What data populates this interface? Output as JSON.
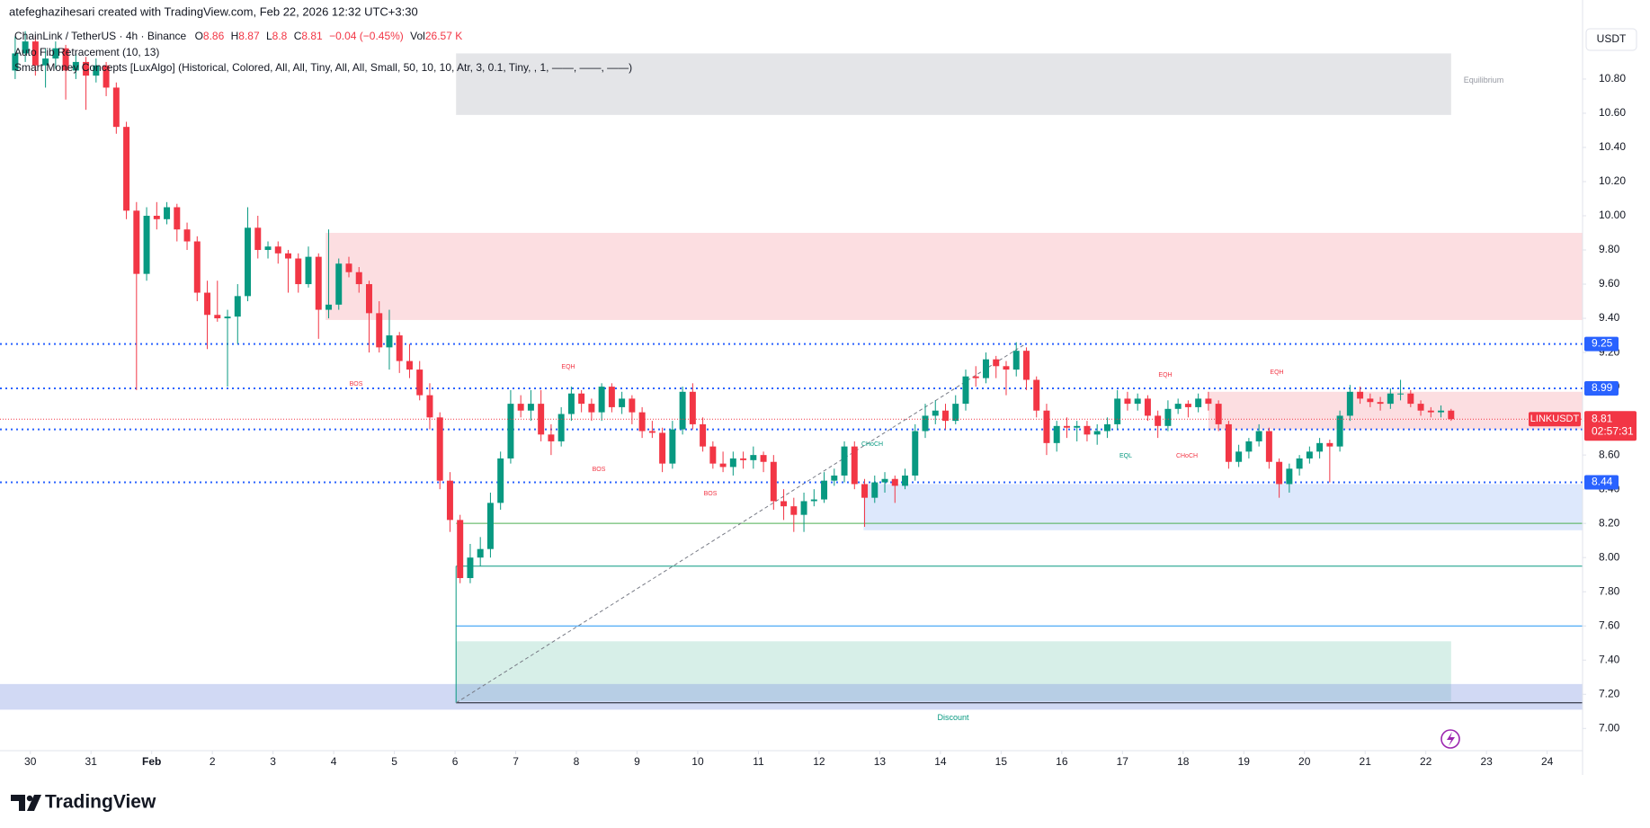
{
  "header": {
    "text": "atefeghazihesari created with TradingView.com, Feb 22, 2026 12:32 UTC+3:30"
  },
  "legend": {
    "symbol": "ChainLink / TetherUS · 4h · Binance",
    "ohlc_labels": [
      "O",
      "H",
      "L",
      "C"
    ],
    "change": "−0.04 (−0.45%)",
    "vol_label": "Vol",
    "vol": "26.57 K",
    "indicators": [
      "Auto Fib Retracement (10, 13)",
      "Smart Money Concepts [LuxAlgo] (Historical, Colored, All, All, Tiny, All, All, Small, 50, 10, 10, Atr, 3, 0.1, Tiny, , 1, ——, ——, ——)"
    ]
  },
  "currency": "USDT",
  "logo": "TradingView",
  "chart_data": {
    "type": "candlestick",
    "up_color": "#089981",
    "down_color": "#f23645",
    "xlim": [
      -1.5,
      155
    ],
    "ylim": [
      6.87,
      11.11
    ],
    "xticks": [
      {
        "value": 1.5,
        "label": "30"
      },
      {
        "value": 7.5,
        "label": "31"
      },
      {
        "value": 13.5,
        "label": "Feb"
      },
      {
        "value": 19.5,
        "label": "2"
      },
      {
        "value": 25.5,
        "label": "3"
      },
      {
        "value": 31.5,
        "label": "4"
      },
      {
        "value": 37.5,
        "label": "5"
      },
      {
        "value": 43.5,
        "label": "6"
      },
      {
        "value": 49.5,
        "label": "7"
      },
      {
        "value": 55.5,
        "label": "8"
      },
      {
        "value": 61.5,
        "label": "9"
      },
      {
        "value": 67.5,
        "label": "10"
      },
      {
        "value": 73.5,
        "label": "11"
      },
      {
        "value": 79.5,
        "label": "12"
      },
      {
        "value": 85.5,
        "label": "13"
      },
      {
        "value": 91.5,
        "label": "14"
      },
      {
        "value": 97.5,
        "label": "15"
      },
      {
        "value": 103.5,
        "label": "16"
      },
      {
        "value": 109.5,
        "label": "17"
      },
      {
        "value": 115.5,
        "label": "18"
      },
      {
        "value": 121.5,
        "label": "19"
      },
      {
        "value": 127.5,
        "label": "20"
      },
      {
        "value": 133.5,
        "label": "21"
      },
      {
        "value": 139.5,
        "label": "22"
      },
      {
        "value": 145.5,
        "label": "23"
      },
      {
        "value": 151.5,
        "label": "24"
      }
    ],
    "yticks": [
      {
        "value": 7,
        "label": "7.00"
      },
      {
        "value": 7.2,
        "label": "7.20"
      },
      {
        "value": 7.4,
        "label": "7.40"
      },
      {
        "value": 7.6,
        "label": "7.60"
      },
      {
        "value": 7.8,
        "label": "7.80"
      },
      {
        "value": 8,
        "label": "8.00"
      },
      {
        "value": 8.2,
        "label": "8.20"
      },
      {
        "value": 8.4,
        "label": "8.40"
      },
      {
        "value": 8.6,
        "label": "8.60"
      },
      {
        "value": 8.8,
        "label": "8.80"
      },
      {
        "value": 9,
        "label": "9.00"
      },
      {
        "value": 9.2,
        "label": "9.20"
      },
      {
        "value": 9.4,
        "label": "9.40"
      },
      {
        "value": 9.6,
        "label": "9.60"
      },
      {
        "value": 9.8,
        "label": "9.80"
      },
      {
        "value": 10,
        "label": "10.00"
      },
      {
        "value": 10.2,
        "label": "10.20"
      },
      {
        "value": 10.4,
        "label": "10.40"
      },
      {
        "value": 10.6,
        "label": "10.60"
      },
      {
        "value": 10.8,
        "label": "10.80"
      }
    ],
    "candles": [
      [
        10.85,
        11.05,
        10.8,
        10.95
      ],
      [
        10.95,
        11.08,
        10.9,
        11.02
      ],
      [
        11.02,
        11.05,
        10.82,
        10.88
      ],
      [
        10.88,
        10.98,
        10.75,
        10.92
      ],
      [
        10.92,
        11.02,
        10.86,
        10.98
      ],
      [
        10.98,
        11.0,
        10.68,
        10.85
      ],
      [
        10.85,
        10.95,
        10.8,
        10.9
      ],
      [
        10.9,
        10.93,
        10.62,
        10.82
      ],
      [
        10.82,
        10.92,
        10.78,
        10.88
      ],
      [
        10.88,
        10.9,
        10.7,
        10.75
      ],
      [
        10.75,
        10.78,
        10.48,
        10.52
      ],
      [
        10.52,
        10.55,
        9.98,
        10.03
      ],
      [
        10.03,
        10.08,
        8.98,
        9.66
      ],
      [
        9.66,
        10.05,
        9.62,
        10.0
      ],
      [
        10.0,
        10.08,
        9.92,
        9.98
      ],
      [
        9.98,
        10.08,
        9.95,
        10.05
      ],
      [
        10.05,
        10.07,
        9.85,
        9.92
      ],
      [
        9.92,
        9.96,
        9.8,
        9.85
      ],
      [
        9.85,
        9.88,
        9.5,
        9.55
      ],
      [
        9.55,
        9.62,
        9.22,
        9.42
      ],
      [
        9.42,
        9.62,
        9.38,
        9.4
      ],
      [
        9.4,
        9.45,
        9.0,
        9.41
      ],
      [
        9.41,
        9.6,
        9.25,
        9.53
      ],
      [
        9.53,
        10.05,
        9.5,
        9.93
      ],
      [
        9.93,
        10.0,
        9.75,
        9.8
      ],
      [
        9.8,
        9.85,
        9.75,
        9.82
      ],
      [
        9.82,
        9.85,
        9.72,
        9.78
      ],
      [
        9.78,
        9.8,
        9.55,
        9.75
      ],
      [
        9.75,
        9.78,
        9.55,
        9.6
      ],
      [
        9.6,
        9.82,
        9.58,
        9.76
      ],
      [
        9.76,
        9.78,
        9.28,
        9.45
      ],
      [
        9.45,
        9.92,
        9.4,
        9.48
      ],
      [
        9.48,
        9.75,
        9.45,
        9.72
      ],
      [
        9.72,
        9.76,
        9.64,
        9.67
      ],
      [
        9.67,
        9.7,
        9.55,
        9.6
      ],
      [
        9.6,
        9.62,
        9.2,
        9.43
      ],
      [
        9.43,
        9.5,
        9.2,
        9.23
      ],
      [
        9.23,
        9.45,
        9.1,
        9.3
      ],
      [
        9.3,
        9.32,
        9.08,
        9.15
      ],
      [
        9.15,
        9.25,
        9.05,
        9.1
      ],
      [
        9.1,
        9.15,
        8.92,
        8.95
      ],
      [
        8.95,
        9.02,
        8.75,
        8.82
      ],
      [
        8.82,
        8.85,
        8.4,
        8.45
      ],
      [
        8.45,
        8.5,
        8.15,
        8.22
      ],
      [
        8.22,
        8.25,
        7.85,
        7.88
      ],
      [
        7.88,
        8.08,
        7.85,
        8.0
      ],
      [
        8.0,
        8.12,
        7.95,
        8.05
      ],
      [
        8.05,
        8.38,
        8.0,
        8.32
      ],
      [
        8.32,
        8.62,
        8.28,
        8.58
      ],
      [
        8.58,
        8.98,
        8.55,
        8.9
      ],
      [
        8.9,
        8.95,
        8.82,
        8.86
      ],
      [
        8.86,
        8.98,
        8.8,
        8.9
      ],
      [
        8.9,
        8.98,
        8.68,
        8.72
      ],
      [
        8.72,
        8.78,
        8.6,
        8.68
      ],
      [
        8.68,
        8.88,
        8.65,
        8.84
      ],
      [
        8.84,
        9.0,
        8.8,
        8.96
      ],
      [
        8.96,
        8.98,
        8.85,
        8.9
      ],
      [
        8.9,
        8.93,
        8.8,
        8.85
      ],
      [
        8.85,
        9.02,
        8.8,
        9.0
      ],
      [
        9.0,
        9.02,
        8.85,
        8.88
      ],
      [
        8.88,
        8.97,
        8.84,
        8.93
      ],
      [
        8.93,
        8.95,
        8.78,
        8.85
      ],
      [
        8.85,
        8.88,
        8.7,
        8.74
      ],
      [
        8.74,
        8.8,
        8.7,
        8.73
      ],
      [
        8.73,
        8.76,
        8.5,
        8.55
      ],
      [
        8.55,
        8.8,
        8.52,
        8.75
      ],
      [
        8.75,
        9.0,
        8.72,
        8.97
      ],
      [
        8.97,
        9.02,
        8.75,
        8.78
      ],
      [
        8.78,
        8.82,
        8.62,
        8.65
      ],
      [
        8.65,
        8.68,
        8.52,
        8.55
      ],
      [
        8.55,
        8.62,
        8.5,
        8.53
      ],
      [
        8.53,
        8.62,
        8.48,
        8.58
      ],
      [
        8.58,
        8.62,
        8.52,
        8.57
      ],
      [
        8.57,
        8.65,
        8.52,
        8.6
      ],
      [
        8.6,
        8.62,
        8.5,
        8.56
      ],
      [
        8.56,
        8.6,
        8.28,
        8.33
      ],
      [
        8.33,
        8.4,
        8.22,
        8.3
      ],
      [
        8.3,
        8.35,
        8.15,
        8.25
      ],
      [
        8.25,
        8.38,
        8.15,
        8.33
      ],
      [
        8.33,
        8.4,
        8.3,
        8.34
      ],
      [
        8.34,
        8.5,
        8.32,
        8.45
      ],
      [
        8.45,
        8.52,
        8.42,
        8.48
      ],
      [
        8.48,
        8.68,
        8.44,
        8.65
      ],
      [
        8.65,
        8.68,
        8.4,
        8.43
      ],
      [
        8.43,
        8.46,
        8.18,
        8.35
      ],
      [
        8.35,
        8.48,
        8.32,
        8.44
      ],
      [
        8.44,
        8.5,
        8.38,
        8.46
      ],
      [
        8.46,
        8.48,
        8.32,
        8.42
      ],
      [
        8.42,
        8.52,
        8.4,
        8.48
      ],
      [
        8.48,
        8.78,
        8.45,
        8.74
      ],
      [
        8.74,
        8.9,
        8.7,
        8.83
      ],
      [
        8.83,
        8.92,
        8.78,
        8.86
      ],
      [
        8.86,
        8.9,
        8.75,
        8.8
      ],
      [
        8.8,
        8.95,
        8.78,
        8.9
      ],
      [
        8.9,
        9.1,
        8.86,
        9.06
      ],
      [
        9.06,
        9.12,
        9.0,
        9.05
      ],
      [
        9.05,
        9.2,
        9.02,
        9.16
      ],
      [
        9.16,
        9.18,
        9.05,
        9.12
      ],
      [
        9.12,
        9.15,
        8.95,
        9.1
      ],
      [
        9.1,
        9.26,
        9.06,
        9.21
      ],
      [
        9.21,
        9.23,
        8.98,
        9.04
      ],
      [
        9.04,
        9.06,
        8.82,
        8.86
      ],
      [
        8.86,
        8.9,
        8.6,
        8.67
      ],
      [
        8.67,
        8.8,
        8.62,
        8.77
      ],
      [
        8.77,
        8.82,
        8.7,
        8.76
      ],
      [
        8.76,
        8.8,
        8.68,
        8.77
      ],
      [
        8.77,
        8.8,
        8.68,
        8.72
      ],
      [
        8.72,
        8.78,
        8.66,
        8.74
      ],
      [
        8.74,
        8.82,
        8.7,
        8.78
      ],
      [
        8.78,
        8.98,
        8.75,
        8.93
      ],
      [
        8.93,
        8.97,
        8.86,
        8.9
      ],
      [
        8.9,
        8.96,
        8.86,
        8.93
      ],
      [
        8.93,
        8.95,
        8.8,
        8.83
      ],
      [
        8.83,
        8.86,
        8.7,
        8.77
      ],
      [
        8.77,
        8.92,
        8.74,
        8.87
      ],
      [
        8.87,
        8.93,
        8.84,
        8.9
      ],
      [
        8.9,
        8.92,
        8.82,
        8.88
      ],
      [
        8.88,
        8.96,
        8.85,
        8.93
      ],
      [
        8.93,
        8.97,
        8.86,
        8.9
      ],
      [
        8.9,
        8.92,
        8.74,
        8.78
      ],
      [
        8.78,
        8.8,
        8.52,
        8.56
      ],
      [
        8.56,
        8.66,
        8.53,
        8.62
      ],
      [
        8.62,
        8.7,
        8.58,
        8.68
      ],
      [
        8.68,
        8.78,
        8.65,
        8.74
      ],
      [
        8.74,
        8.76,
        8.52,
        8.56
      ],
      [
        8.56,
        8.58,
        8.35,
        8.43
      ],
      [
        8.43,
        8.55,
        8.38,
        8.52
      ],
      [
        8.52,
        8.6,
        8.48,
        8.58
      ],
      [
        8.58,
        8.65,
        8.55,
        8.62
      ],
      [
        8.62,
        8.7,
        8.58,
        8.67
      ],
      [
        8.67,
        8.69,
        8.44,
        8.65
      ],
      [
        8.65,
        8.86,
        8.62,
        8.83
      ],
      [
        8.83,
        9.01,
        8.8,
        8.97
      ],
      [
        8.97,
        9.0,
        8.9,
        8.93
      ],
      [
        8.93,
        8.96,
        8.88,
        8.91
      ],
      [
        8.91,
        8.94,
        8.86,
        8.9
      ],
      [
        8.9,
        8.99,
        8.87,
        8.96
      ],
      [
        8.96,
        9.04,
        8.92,
        8.96
      ],
      [
        8.96,
        8.98,
        8.88,
        8.9
      ],
      [
        8.9,
        8.92,
        8.83,
        8.86
      ],
      [
        8.86,
        8.88,
        8.82,
        8.85
      ],
      [
        8.85,
        8.89,
        8.82,
        8.86
      ],
      [
        8.86,
        8.87,
        8.8,
        8.81
      ]
    ],
    "zones": [
      {
        "from": 43.6,
        "to": 142,
        "top": 10.95,
        "bottom": 10.59,
        "color": "#b2b5be",
        "label": "Equilibrium"
      },
      {
        "from": 30.7,
        "to": 155,
        "top": 9.9,
        "bottom": 9.39,
        "color": "#f7a1a8"
      },
      {
        "from": 83.9,
        "to": 155,
        "top": 8.43,
        "bottom": 8.16,
        "color": "#9fbdf7"
      },
      {
        "from": 118,
        "to": 155,
        "top": 8.97,
        "bottom": 8.75,
        "color": "#f7a1a8"
      },
      {
        "from": 43.6,
        "to": 142,
        "top": 7.51,
        "bottom": 7.16,
        "color": "#8cd0bd"
      },
      {
        "from": -1.5,
        "to": 155,
        "top": 7.26,
        "bottom": 7.11,
        "color": "#7b93e0",
        "label": "Discount"
      }
    ],
    "fib_lines": [
      {
        "from": 43.6,
        "to": 155,
        "value": 8.2,
        "color": "#4caf50"
      },
      {
        "from": 43.6,
        "to": 155,
        "value": 7.95,
        "color": "#089981"
      },
      {
        "from": 43.6,
        "to": 155,
        "value": 7.6,
        "color": "#2196f3"
      },
      {
        "from": 43.6,
        "to": 155,
        "value": 7.15,
        "color": "#131722"
      }
    ],
    "levels": [
      {
        "value": 9.25,
        "color": "#2962ff"
      },
      {
        "value": 8.99,
        "color": "#2962ff"
      },
      {
        "value": 8.75,
        "color": "#2962ff"
      },
      {
        "value": 8.44,
        "color": "#2962ff"
      }
    ],
    "last_price": {
      "symbol": "LINKUSDT",
      "countdown": "02:57:31",
      "color": "#f23645"
    },
    "annotations": [
      "EQH",
      "BOS",
      "BOS",
      "BOS",
      "CHoCH",
      "EQL",
      "CHoCH",
      "EQH",
      "EQH"
    ]
  }
}
